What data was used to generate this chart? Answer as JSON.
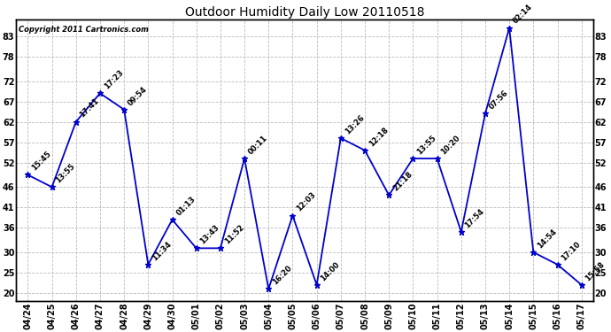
{
  "title": "Outdoor Humidity Daily Low 20110518",
  "copyright": "Copyright 2011 Cartronics.com",
  "line_color": "#0000CC",
  "bg_color": "#FFFFFF",
  "plot_bg_color": "#FFFFFF",
  "grid_color": "#BBBBBB",
  "text_color": "#000000",
  "dates": [
    "04/24",
    "04/25",
    "04/26",
    "04/27",
    "04/28",
    "04/29",
    "04/30",
    "05/01",
    "05/02",
    "05/03",
    "05/04",
    "05/05",
    "05/06",
    "05/07",
    "05/08",
    "05/09",
    "05/10",
    "05/11",
    "05/12",
    "05/13",
    "05/14",
    "05/15",
    "05/16",
    "05/17"
  ],
  "values": [
    49,
    46,
    62,
    69,
    65,
    27,
    38,
    31,
    31,
    53,
    21,
    39,
    22,
    58,
    55,
    44,
    53,
    53,
    35,
    64,
    85,
    30,
    27,
    22
  ],
  "labels": [
    "15:45",
    "13:55",
    "17:41",
    "17:23",
    "09:54",
    "11:34",
    "01:13",
    "13:43",
    "11:52",
    "00:11",
    "16:20",
    "12:03",
    "14:00",
    "13:26",
    "12:18",
    "21:18",
    "13:55",
    "10:20",
    "17:54",
    "07:56",
    "02:14",
    "14:54",
    "17:10",
    "15:58"
  ],
  "ylim_min": 18,
  "ylim_max": 87,
  "yticks": [
    20,
    25,
    30,
    36,
    41,
    46,
    52,
    57,
    62,
    67,
    72,
    78,
    83
  ],
  "title_fontsize": 10,
  "label_fontsize": 6,
  "tick_fontsize": 7
}
